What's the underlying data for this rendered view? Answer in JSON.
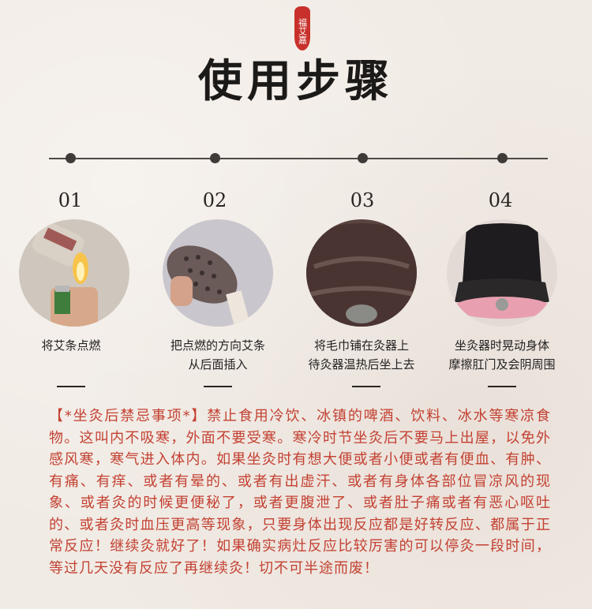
{
  "brand": {
    "seal_text": "福艾嘉"
  },
  "title": "使用步骤",
  "steps": [
    {
      "number": "01",
      "caption_line1": "将艾条点燃",
      "caption_line2": ""
    },
    {
      "number": "02",
      "caption_line1": "把点燃的方向艾条",
      "caption_line2": "从后面插入"
    },
    {
      "number": "03",
      "caption_line1": "将毛巾铺在灸器上",
      "caption_line2": "待灸器温热后坐上去"
    },
    {
      "number": "04",
      "caption_line1": "坐灸器时晃动身体",
      "caption_line2": "摩擦肛门及会阴周围"
    }
  ],
  "notes": "【*坐灸后禁忌事项*】禁止食用冷饮、冰镇的啤酒、饮料、冰水等寒凉食物。这叫内不吸寒，外面不要受寒。寒冷时节坐灸后不要马上出屋，以免外感风寒，寒气进入体内。如果坐灸时有想大便或者小便或者有便血、有肿、有痛、有痒、或者有晕的、或者有出虚汗、或者有身体各部位冒凉风的现象、或者灸的时候更便秘了，或者更腹泄了、或者肚子痛或者有恶心呕吐的、或者灸时血压更高等现象，只要身体出现反应都是好转反应、都属于正常反应！继续灸就好了！如果确实病灶反应比较厉害的可以停灸一段时间，等过几天没有反应了再继续灸！切不可半途而废！"
}
